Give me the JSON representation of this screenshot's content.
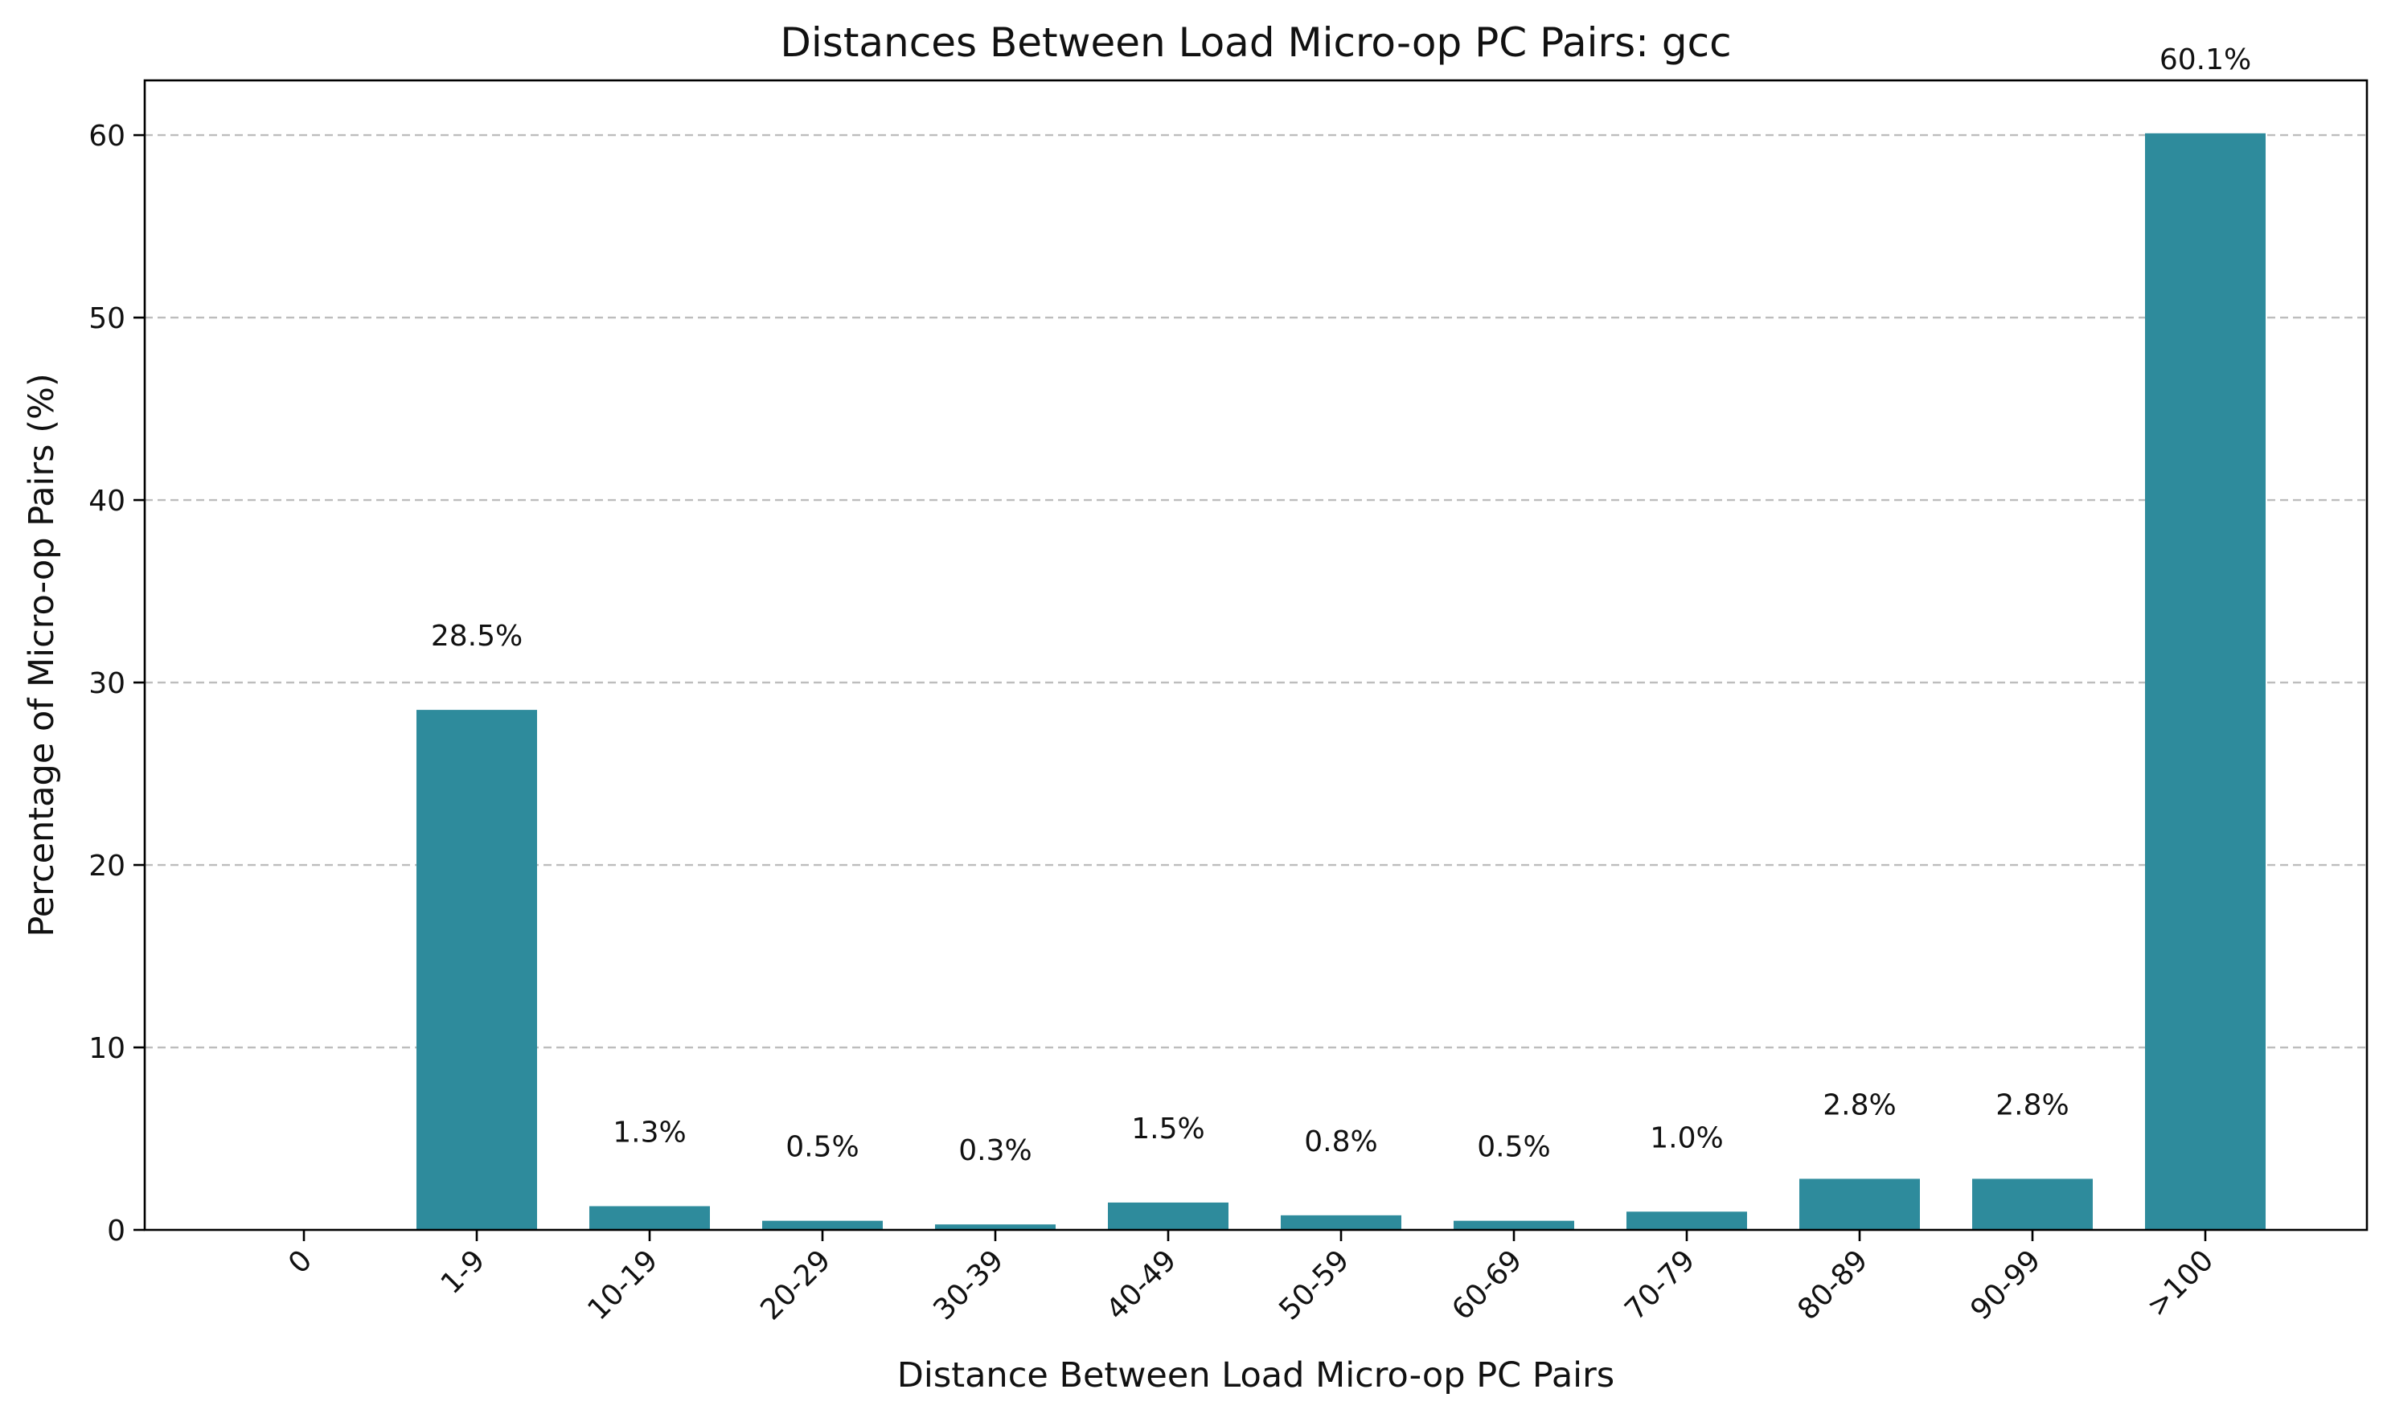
{
  "chart_data": {
    "type": "bar",
    "title": "Distances Between Load Micro-op PC Pairs: gcc",
    "xlabel": "Distance Between Load Micro-op PC Pairs",
    "ylabel": "Percentage of Micro-op Pairs (%)",
    "categories": [
      "0",
      "1-9",
      "10-19",
      "20-29",
      "30-39",
      "40-49",
      "50-59",
      "60-69",
      "70-79",
      "80-89",
      "90-99",
      ">100"
    ],
    "values": [
      0,
      28.5,
      1.3,
      0.5,
      0.3,
      1.5,
      0.8,
      0.5,
      1.0,
      2.8,
      2.8,
      60.1
    ],
    "data_labels": [
      null,
      "28.5%",
      "1.3%",
      "0.5%",
      "0.3%",
      "1.5%",
      "0.8%",
      "0.5%",
      "1.0%",
      "2.8%",
      "2.8%",
      "60.1%"
    ],
    "ylim": [
      0,
      63
    ],
    "yticks": [
      0,
      10,
      20,
      30,
      40,
      50,
      60
    ],
    "grid": "y, dashed",
    "bar_color": "#2e8b9c"
  }
}
